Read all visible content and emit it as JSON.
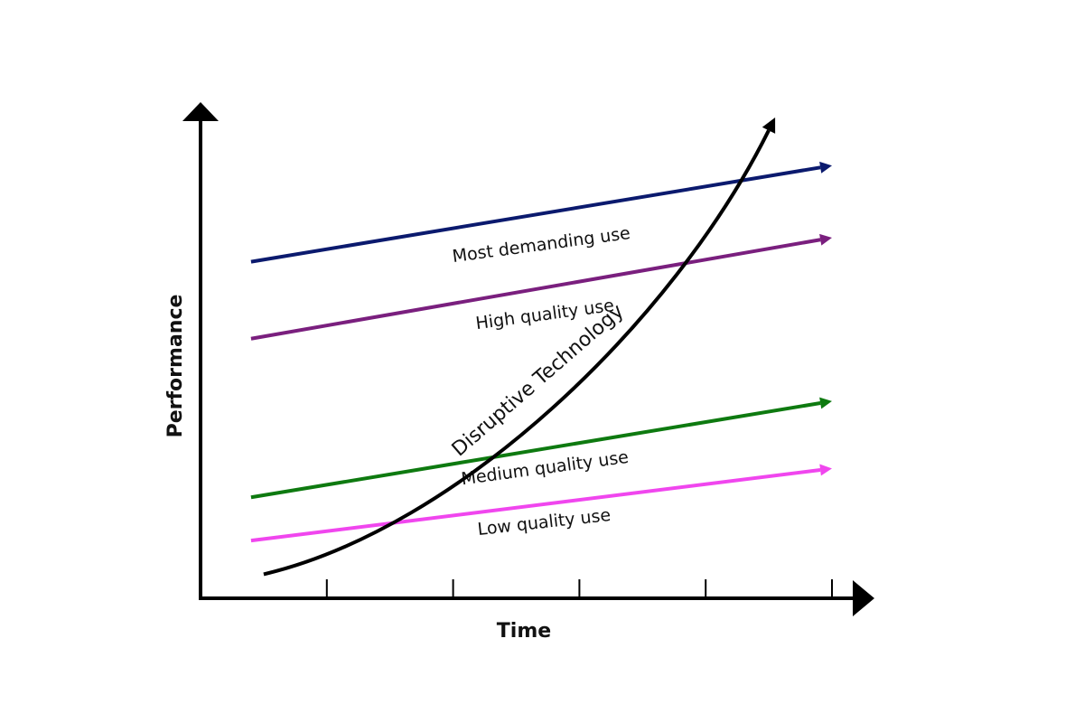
{
  "chart_data": {
    "type": "line",
    "xlabel": "Time",
    "ylabel": "Performance",
    "x_ticks": 5,
    "series": [
      {
        "name": "Most demanding use",
        "color": "#0b1a6e",
        "start": [
          0.08,
          0.7
        ],
        "end": [
          1.0,
          0.9
        ]
      },
      {
        "name": "High quality use",
        "color": "#7a1f7e",
        "start": [
          0.08,
          0.54
        ],
        "end": [
          1.0,
          0.75
        ]
      },
      {
        "name": "Medium quality use",
        "color": "#0e7a10",
        "start": [
          0.08,
          0.21
        ],
        "end": [
          1.0,
          0.41
        ]
      },
      {
        "name": "Low quality use",
        "color": "#f046ee",
        "start": [
          0.08,
          0.12
        ],
        "end": [
          1.0,
          0.27
        ]
      }
    ],
    "curve": {
      "name": "Disruptive Technology",
      "color": "#000000",
      "start": [
        0.1,
        0.05
      ],
      "end": [
        0.91,
        1.0
      ]
    }
  }
}
